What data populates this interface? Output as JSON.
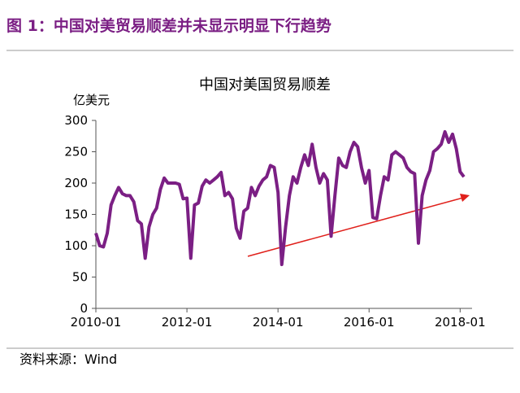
{
  "header": {
    "title": "图 1：中国对美贸易顺差并未显示明显下行趋势"
  },
  "chart_data": {
    "type": "line",
    "title": "中国对美国贸易顺差",
    "y_label": "亿美元",
    "x": [
      "2010-01",
      "2010-02",
      "2010-03",
      "2010-04",
      "2010-05",
      "2010-06",
      "2010-07",
      "2010-08",
      "2010-09",
      "2010-10",
      "2010-11",
      "2010-12",
      "2011-01",
      "2011-02",
      "2011-03",
      "2011-04",
      "2011-05",
      "2011-06",
      "2011-07",
      "2011-08",
      "2011-09",
      "2011-10",
      "2011-11",
      "2011-12",
      "2012-01",
      "2012-02",
      "2012-03",
      "2012-04",
      "2012-05",
      "2012-06",
      "2012-07",
      "2012-08",
      "2012-09",
      "2012-10",
      "2012-11",
      "2012-12",
      "2013-01",
      "2013-02",
      "2013-03",
      "2013-04",
      "2013-05",
      "2013-06",
      "2013-07",
      "2013-08",
      "2013-09",
      "2013-10",
      "2013-11",
      "2013-12",
      "2014-01",
      "2014-02",
      "2014-03",
      "2014-04",
      "2014-05",
      "2014-06",
      "2014-07",
      "2014-08",
      "2014-09",
      "2014-10",
      "2014-11",
      "2014-12",
      "2015-01",
      "2015-02",
      "2015-03",
      "2015-04",
      "2015-05",
      "2015-06",
      "2015-07",
      "2015-08",
      "2015-09",
      "2015-10",
      "2015-11",
      "2015-12",
      "2016-01",
      "2016-02",
      "2016-03",
      "2016-04",
      "2016-05",
      "2016-06",
      "2016-07",
      "2016-08",
      "2016-09",
      "2016-10",
      "2016-11",
      "2016-12",
      "2017-01",
      "2017-02",
      "2017-03",
      "2017-04",
      "2017-05",
      "2017-06",
      "2017-07",
      "2017-08",
      "2017-09",
      "2017-10",
      "2017-11",
      "2017-12",
      "2018-01",
      "2018-02"
    ],
    "series": [
      {
        "name": "中国对美国贸易顺差",
        "color": "#7b1f84",
        "values": [
          120,
          100,
          98,
          120,
          165,
          180,
          193,
          183,
          180,
          180,
          170,
          140,
          135,
          80,
          130,
          150,
          160,
          190,
          208,
          200,
          200,
          200,
          198,
          175,
          176,
          80,
          165,
          168,
          195,
          205,
          200,
          205,
          210,
          217,
          180,
          185,
          175,
          128,
          112,
          155,
          160,
          193,
          180,
          195,
          205,
          210,
          228,
          225,
          185,
          70,
          130,
          180,
          210,
          200,
          225,
          245,
          228,
          262,
          225,
          200,
          215,
          205,
          115,
          180,
          240,
          228,
          225,
          250,
          265,
          258,
          225,
          200,
          220,
          145,
          143,
          180,
          210,
          205,
          245,
          250,
          245,
          240,
          225,
          218,
          215,
          104,
          180,
          205,
          220,
          250,
          255,
          262,
          282,
          265,
          278,
          255,
          218,
          210
        ]
      }
    ],
    "ylim": [
      0,
      300
    ],
    "yticks": [
      0,
      50,
      100,
      150,
      200,
      250,
      300
    ],
    "xticks": [
      "2010-01",
      "2012-01",
      "2014-01",
      "2016-01",
      "2018-01"
    ],
    "grid": false
  },
  "footer": {
    "source": "资料来源：Wind"
  }
}
